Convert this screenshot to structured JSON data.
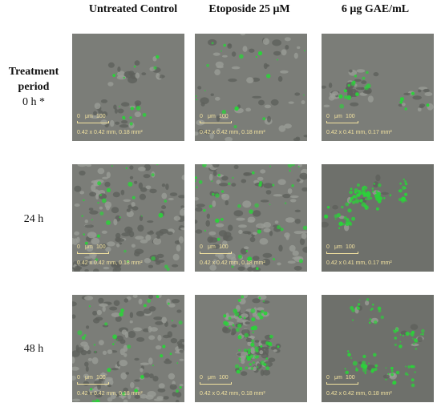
{
  "columns": [
    {
      "label": "Untreated Control"
    },
    {
      "label": "Etoposide 25 μM"
    },
    {
      "label": "6 μg GAE/mL"
    }
  ],
  "rows": [
    {
      "label_bold_line1": "Treatment",
      "label_bold_line2": "period",
      "label": "0 h *"
    },
    {
      "label_bold_line1": "",
      "label_bold_line2": "",
      "label": "24 h"
    },
    {
      "label_bold_line1": "",
      "label_bold_line2": "",
      "label": "48 h"
    }
  ],
  "scalebar": {
    "zero": "0",
    "unit": "μm",
    "value": "100"
  },
  "panels": [
    [
      "0.42 x 0.42 mm, 0.18 mm²",
      "0.42 x 0.42 mm, 0.18 mm²",
      "0.42 x 0.41 mm, 0.17 mm²"
    ],
    [
      "0.42 x 0.42 mm, 0.18 mm²",
      "0.42 x 0.42 mm, 0.18 mm²",
      "0.42 x 0.41 mm, 0.17 mm²"
    ],
    [
      "0.42 x 0.42 mm, 0.18 mm²",
      "0.42 x 0.42 mm, 0.18 mm²",
      "0.42 x 0.42 mm, 0.18 mm²"
    ]
  ],
  "colors": {
    "fluorescence": "#2bd23a",
    "cell_gray": "#6c6e69",
    "background_gray": "#7b7d78",
    "scale_text": "#f2e2a0"
  }
}
